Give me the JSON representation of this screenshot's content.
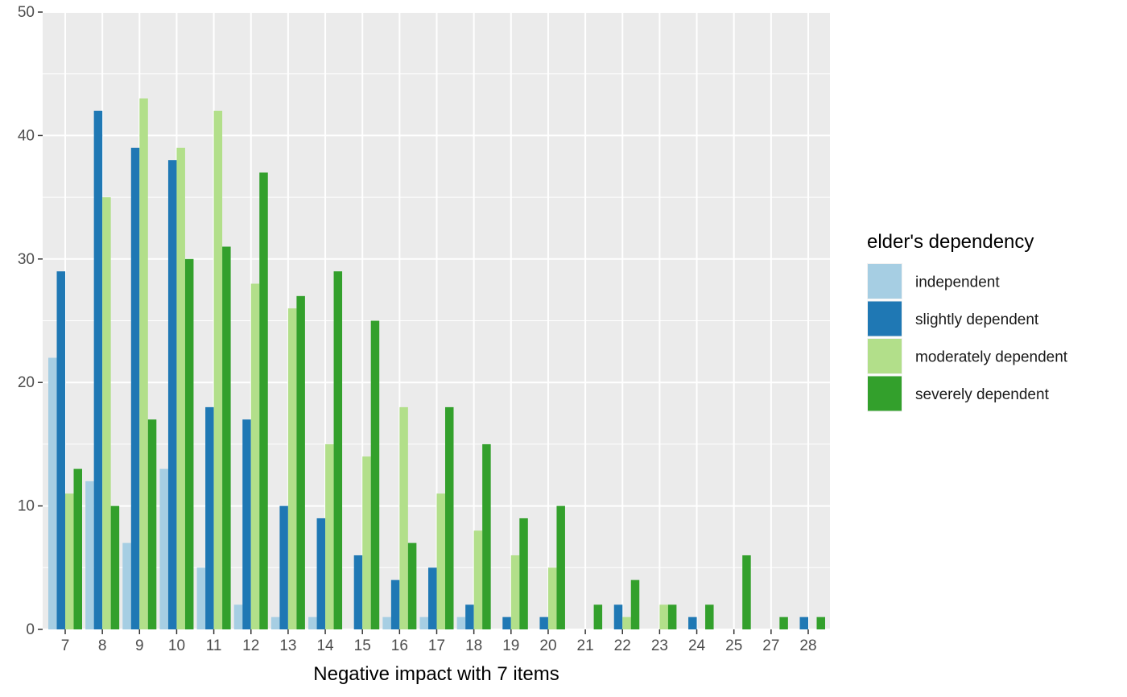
{
  "chart_data": {
    "type": "bar",
    "title": "",
    "xlabel": "Negative impact with 7 items",
    "ylabel": "",
    "ylim": [
      0,
      50
    ],
    "yticks": [
      0,
      10,
      20,
      30,
      40,
      50
    ],
    "grid": true,
    "legend_position": "right",
    "legend_title": "elder's dependency",
    "categories": [
      "7",
      "8",
      "9",
      "10",
      "11",
      "12",
      "13",
      "14",
      "15",
      "16",
      "17",
      "18",
      "19",
      "20",
      "21",
      "22",
      "23",
      "24",
      "25",
      "27",
      "28"
    ],
    "series": [
      {
        "name": "independent",
        "color": "#a6cee3",
        "values": [
          22,
          12,
          7,
          13,
          5,
          2,
          1,
          1,
          null,
          1,
          1,
          1,
          null,
          null,
          null,
          null,
          null,
          null,
          null,
          null,
          null
        ]
      },
      {
        "name": "slightly dependent",
        "color": "#1f78b4",
        "values": [
          29,
          42,
          39,
          38,
          18,
          17,
          10,
          9,
          6,
          4,
          5,
          2,
          1,
          1,
          null,
          2,
          null,
          1,
          null,
          null,
          1
        ]
      },
      {
        "name": "moderately dependent",
        "color": "#b2df8a",
        "values": [
          11,
          35,
          43,
          39,
          42,
          28,
          26,
          15,
          14,
          18,
          11,
          8,
          6,
          5,
          null,
          1,
          2,
          null,
          null,
          null,
          null
        ]
      },
      {
        "name": "severely dependent",
        "color": "#33a02c",
        "values": [
          13,
          10,
          17,
          30,
          31,
          37,
          27,
          29,
          25,
          7,
          18,
          15,
          9,
          10,
          2,
          4,
          2,
          2,
          6,
          1,
          1
        ]
      }
    ]
  }
}
